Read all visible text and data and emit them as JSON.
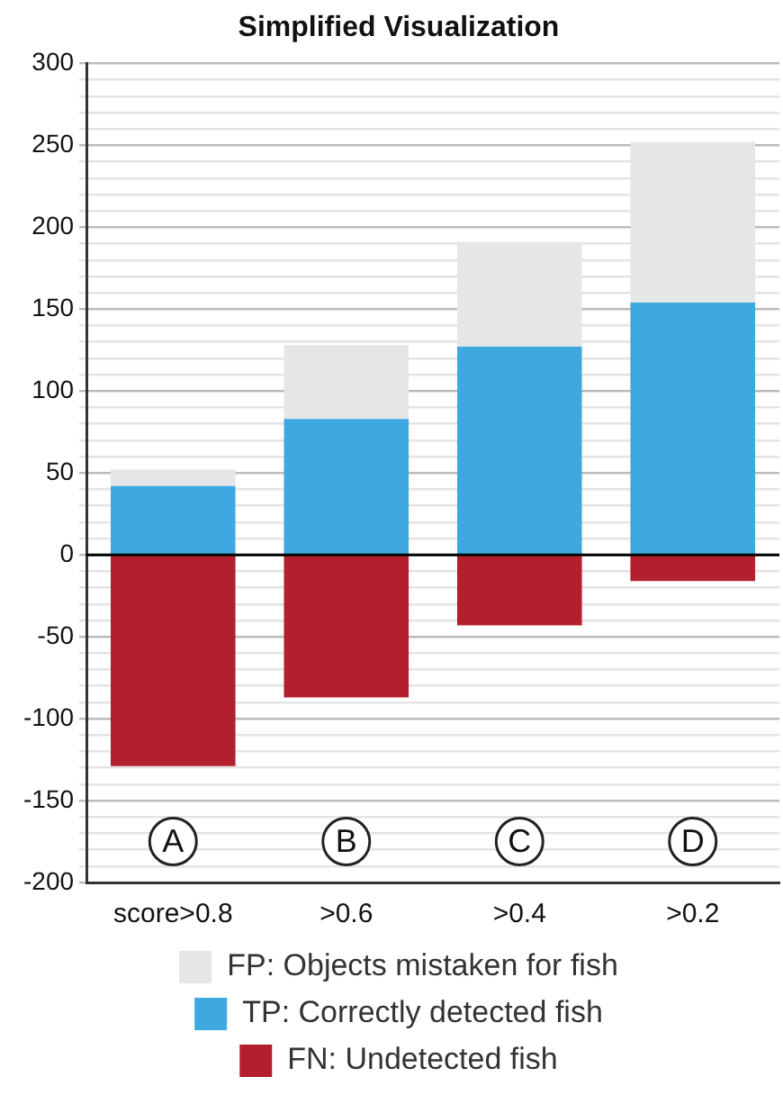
{
  "chart_data": {
    "type": "bar",
    "title": "Simplified Visualization",
    "categories": [
      "score>0.8",
      ">0.6",
      ">0.4",
      ">0.2"
    ],
    "stacked": true,
    "series": [
      {
        "name": "FN: Undetected fish",
        "color": "#b31f2e",
        "values": [
          -129,
          -87,
          -43,
          -16
        ]
      },
      {
        "name": "TP: Correctly detected fish",
        "color": "#3ea9e0",
        "values": [
          42,
          83,
          127,
          154
        ]
      },
      {
        "name": "FP: Objects mistaken for fish",
        "color": "#e5e6e8",
        "values": [
          10,
          45,
          64,
          98
        ]
      }
    ],
    "ylim": [
      -200,
      300
    ],
    "yticks": [
      -200,
      {
        "value": -190,
        "label": null
      },
      {
        "value": -180,
        "label": null
      },
      {
        "value": -170,
        "label": null
      },
      {
        "value": -160,
        "label": null
      },
      -150,
      {
        "value": -140,
        "label": null
      },
      {
        "value": -130,
        "label": null
      },
      {
        "value": -120,
        "label": null
      },
      {
        "value": -110,
        "label": null
      },
      -100,
      {
        "value": -90,
        "label": null
      },
      {
        "value": -80,
        "label": null
      },
      {
        "value": -70,
        "label": null
      },
      {
        "value": -60,
        "label": null
      },
      -50,
      {
        "value": -40,
        "label": null
      },
      {
        "value": -30,
        "label": null
      },
      {
        "value": -20,
        "label": null
      },
      {
        "value": -10,
        "label": null
      },
      0,
      {
        "value": 10,
        "label": null
      },
      {
        "value": 20,
        "label": null
      },
      {
        "value": 30,
        "label": null
      },
      {
        "value": 40,
        "label": null
      },
      50,
      {
        "value": 60,
        "label": null
      },
      {
        "value": 70,
        "label": null
      },
      {
        "value": 80,
        "label": null
      },
      {
        "value": 90,
        "label": null
      },
      100,
      {
        "value": 110,
        "label": null
      },
      {
        "value": 120,
        "label": null
      },
      {
        "value": 130,
        "label": null
      },
      {
        "value": 140,
        "label": null
      },
      150,
      {
        "value": 160,
        "label": null
      },
      {
        "value": 170,
        "label": null
      },
      {
        "value": 180,
        "label": null
      },
      {
        "value": 190,
        "label": null
      },
      200,
      {
        "value": 210,
        "label": null
      },
      {
        "value": 220,
        "label": null
      },
      {
        "value": 230,
        "label": null
      },
      {
        "value": 240,
        "label": null
      },
      250,
      {
        "value": 260,
        "label": null
      },
      {
        "value": 270,
        "label": null
      },
      {
        "value": 280,
        "label": null
      },
      {
        "value": 290,
        "label": null
      },
      300
    ],
    "grid": "y",
    "legend": "bottom",
    "annotations": [
      {
        "text": "A",
        "x": "score>0.8",
        "y": -175
      },
      {
        "text": "B",
        "x": ">0.6",
        "y": -175
      },
      {
        "text": "C",
        "x": ">0.4",
        "y": -175
      },
      {
        "text": "D",
        "x": ">0.2",
        "y": -175
      }
    ]
  }
}
